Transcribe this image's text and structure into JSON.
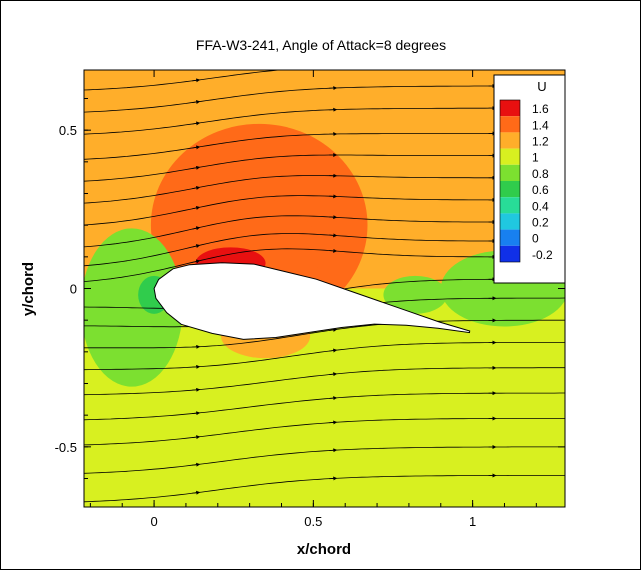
{
  "chart_data": {
    "type": "heatmap",
    "title": "FFA-W3-241, Angle of Attack=8 degrees",
    "xlabel": "x/chord",
    "ylabel": "y/chord",
    "xlim": [
      -0.22,
      1.29
    ],
    "ylim": [
      -0.69,
      0.69
    ],
    "x_ticks": [
      0,
      0.5,
      1
    ],
    "x_tick_labels": [
      "0",
      "0.5",
      "1"
    ],
    "y_ticks": [
      -0.5,
      0,
      0.5
    ],
    "y_tick_labels": [
      "-0.5",
      "0",
      "0.5"
    ],
    "legend": {
      "title": "U",
      "placement": "top-right",
      "levels": [
        1.6,
        1.4,
        1.2,
        1,
        0.8,
        0.6,
        0.4,
        0.2,
        0,
        -0.2
      ],
      "labels": [
        "1.6",
        "1.4",
        "1.2",
        "1",
        "0.8",
        "0.6",
        "0.4",
        "0.2",
        "0",
        "-0.2"
      ],
      "colors": [
        "#e81010",
        "#ff6a18",
        "#ffae2a",
        "#d8f020",
        "#7ce030",
        "#30cc4c",
        "#28dc98",
        "#20c8e0",
        "#1880f0",
        "#1030e8"
      ]
    },
    "background_level": 1.1,
    "regions": [
      {
        "label": "upper-suction-outer",
        "cx": 0.33,
        "cy": 0.2,
        "rx": 0.34,
        "ry": 0.32,
        "value": 1.3
      },
      {
        "label": "upper-suction-mid",
        "cx": 0.3,
        "cy": 0.11,
        "rx": 0.22,
        "ry": 0.18,
        "value": 1.45
      },
      {
        "label": "upper-suction-peak",
        "cx": 0.24,
        "cy": 0.08,
        "rx": 0.11,
        "ry": 0.05,
        "value": 1.6
      },
      {
        "label": "stagnation-region",
        "cx": -0.07,
        "cy": -0.06,
        "rx": 0.16,
        "ry": 0.25,
        "value": 0.78
      },
      {
        "label": "stagnation-core",
        "cx": 0.0,
        "cy": -0.02,
        "rx": 0.05,
        "ry": 0.06,
        "value": 0.5
      },
      {
        "label": "lower-surface-high",
        "cx": 0.35,
        "cy": -0.15,
        "rx": 0.14,
        "ry": 0.07,
        "value": 1.15
      },
      {
        "label": "lower-trailing",
        "cx": 0.82,
        "cy": -0.02,
        "rx": 0.1,
        "ry": 0.06,
        "value": 0.8
      },
      {
        "label": "wake",
        "cx": 1.1,
        "cy": 0.0,
        "rx": 0.2,
        "ry": 0.12,
        "value": 0.82
      }
    ],
    "airfoil": {
      "name": "FFA-W3-241",
      "angle_of_attack_deg": 8,
      "upper": [
        [
          0.0,
          0.0
        ],
        [
          0.01,
          0.03
        ],
        [
          0.05,
          0.07
        ],
        [
          0.1,
          0.09
        ],
        [
          0.2,
          0.11
        ],
        [
          0.3,
          0.12
        ],
        [
          0.4,
          0.11
        ],
        [
          0.5,
          0.1
        ],
        [
          0.6,
          0.08
        ],
        [
          0.7,
          0.06
        ],
        [
          0.8,
          0.04
        ],
        [
          0.9,
          0.02
        ],
        [
          1.0,
          0.005
        ]
      ],
      "lower": [
        [
          0.0,
          0.0
        ],
        [
          0.01,
          -0.03
        ],
        [
          0.05,
          -0.07
        ],
        [
          0.1,
          -0.1
        ],
        [
          0.2,
          -0.115
        ],
        [
          0.3,
          -0.12
        ],
        [
          0.4,
          -0.1
        ],
        [
          0.5,
          -0.07
        ],
        [
          0.6,
          -0.04
        ],
        [
          0.7,
          -0.015
        ],
        [
          0.8,
          -0.005
        ],
        [
          0.9,
          0.0
        ],
        [
          1.0,
          0.0
        ]
      ]
    },
    "streamlines_y0": [
      -0.67,
      -0.58,
      -0.49,
      -0.41,
      -0.33,
      -0.25,
      -0.18,
      -0.11,
      -0.05,
      0.02,
      0.07,
      0.13,
      0.2,
      0.27,
      0.34,
      0.41,
      0.49,
      0.56,
      0.63
    ]
  }
}
